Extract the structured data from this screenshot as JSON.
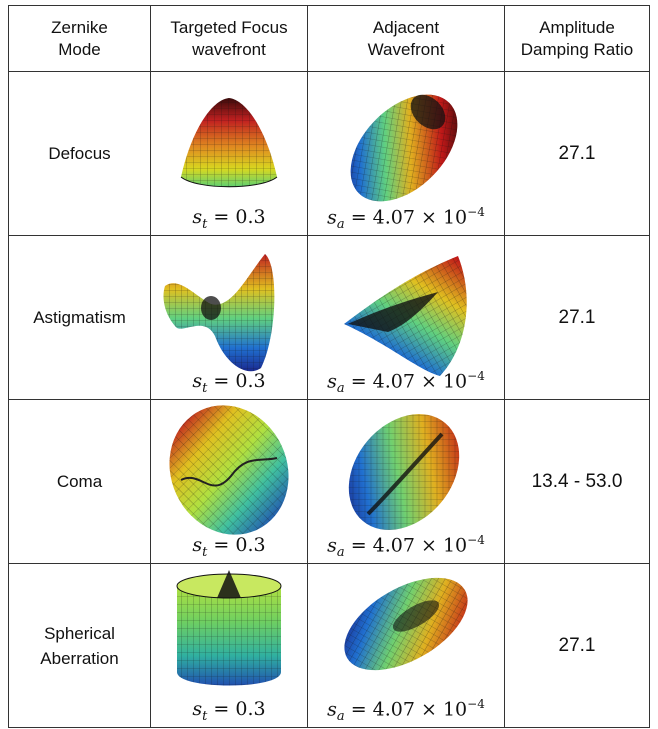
{
  "header": {
    "col1": [
      "Zernike",
      "Mode"
    ],
    "col2": [
      "Targeted Focus",
      "wavefront"
    ],
    "col3": [
      "Adjacent",
      "Wavefront"
    ],
    "col4": [
      "Amplitude",
      "Damping Ratio"
    ]
  },
  "rows": [
    {
      "mode": [
        "Defocus"
      ],
      "target_caption": "s_t = 0.3",
      "adjacent_caption": "s_a = 4.07 × 10^−4",
      "ratio": "27.1",
      "target_icon": "defocus-dome-surface",
      "adjacent_icon": "tilted-ellipse-surface"
    },
    {
      "mode": [
        "Astigmatism"
      ],
      "target_caption": "s_t = 0.3",
      "adjacent_caption": "s_a = 4.07 × 10^−4",
      "ratio": "27.1",
      "target_icon": "saddle-surface",
      "adjacent_icon": "twisted-sheet-surface"
    },
    {
      "mode": [
        "Coma"
      ],
      "target_caption": "s_t = 0.3",
      "adjacent_caption": "s_a = 4.07 × 10^−4",
      "ratio": "13.4 - 53.0",
      "target_icon": "coma-s-surface",
      "adjacent_icon": "tilted-ellipse-ridge-surface"
    },
    {
      "mode": [
        "Spherical",
        "Aberration"
      ],
      "target_caption": "s_t = 0.3",
      "adjacent_caption": "s_a = 4.07 × 10^−4",
      "ratio": "27.1",
      "target_icon": "cylinder-peak-surface",
      "adjacent_icon": "tilted-bowl-surface"
    }
  ],
  "caption_parts": {
    "t_sym": "s",
    "t_sub": "t",
    "t_val": "= 0.3",
    "a_sym": "s",
    "a_sub": "a",
    "a_val": "= 4.07 × 10",
    "a_exp": "−4"
  },
  "colors": {
    "jet_red": "#c01010",
    "jet_yellow": "#e0d020",
    "jet_green": "#40c080",
    "jet_blue": "#2040b0",
    "mesh": "#111111"
  }
}
